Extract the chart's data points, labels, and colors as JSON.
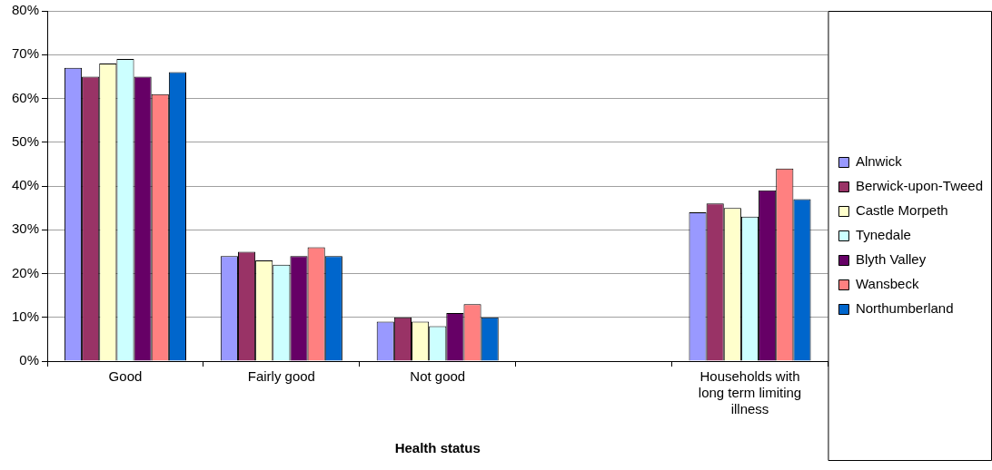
{
  "chart_data": {
    "type": "bar",
    "xlabel": "Health status",
    "categories": [
      "Good",
      "Fairly good",
      "Not good",
      null,
      "Households with long term limiting illness"
    ],
    "series": [
      {
        "name": "Alnwick",
        "color": "#9999ff",
        "values": [
          67,
          24,
          9,
          null,
          34
        ]
      },
      {
        "name": "Berwick-upon-Tweed",
        "color": "#993366",
        "values": [
          65,
          25,
          10,
          null,
          36
        ]
      },
      {
        "name": "Castle Morpeth",
        "color": "#ffffcc",
        "values": [
          68,
          23,
          9,
          null,
          35
        ]
      },
      {
        "name": "Tynedale",
        "color": "#ccffff",
        "values": [
          69,
          22,
          8,
          null,
          33
        ]
      },
      {
        "name": "Blyth Valley",
        "color": "#660066",
        "values": [
          65,
          24,
          11,
          null,
          39
        ]
      },
      {
        "name": "Wansbeck",
        "color": "#ff8080",
        "values": [
          61,
          26,
          13,
          null,
          44
        ]
      },
      {
        "name": "Northumberland",
        "color": "#0066cc",
        "values": [
          66,
          24,
          10,
          null,
          37
        ]
      }
    ],
    "ylim": [
      0,
      80
    ],
    "yticks": [
      {
        "value": 0,
        "label": "0%"
      },
      {
        "value": 10,
        "label": "10%"
      },
      {
        "value": 20,
        "label": "20%"
      },
      {
        "value": 30,
        "label": "30%"
      },
      {
        "value": 40,
        "label": "40%"
      },
      {
        "value": 50,
        "label": "50%"
      },
      {
        "value": 60,
        "label": "60%"
      },
      {
        "value": 70,
        "label": "70%"
      },
      {
        "value": 80,
        "label": "80%"
      }
    ],
    "grid": "y",
    "legend": "right"
  }
}
